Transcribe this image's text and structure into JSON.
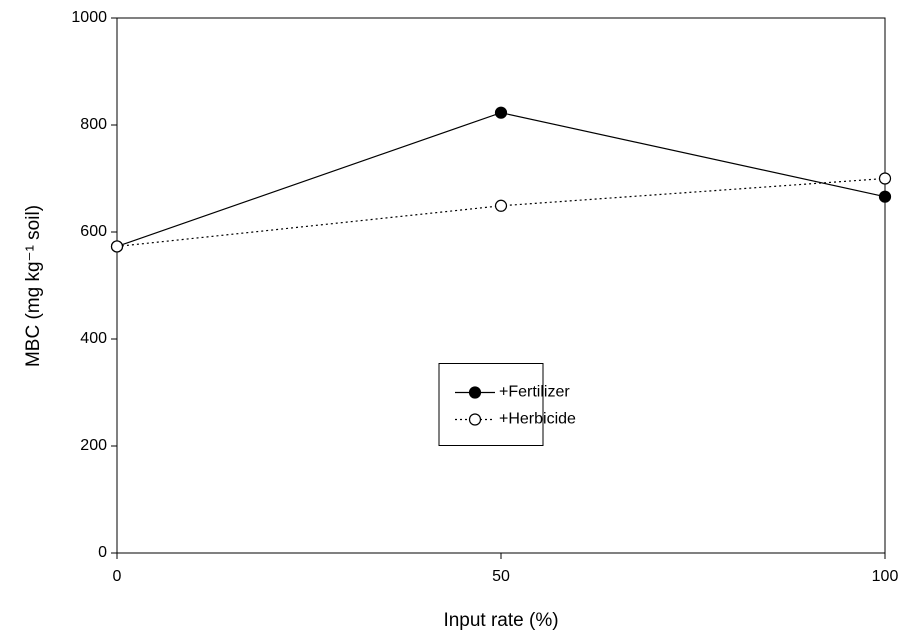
{
  "chart_data": {
    "type": "line",
    "xlabel": "Input rate (%)",
    "ylabel": "MBC (mg kg⁻¹ soil)",
    "x": [
      0,
      50,
      100
    ],
    "series": [
      {
        "name": "+Fertilizer",
        "color": "#000000",
        "line_style": "solid",
        "marker": "filled",
        "values": [
          573,
          823,
          666
        ]
      },
      {
        "name": "+Herbicide",
        "color": "#000000",
        "line_style": "dotted",
        "marker": "open",
        "values": [
          573,
          649,
          700
        ]
      }
    ],
    "xlim": [
      0,
      100
    ],
    "xticks": [
      0,
      50,
      100
    ],
    "ylim": [
      0,
      1000
    ],
    "yticks": [
      0,
      200,
      400,
      600,
      800,
      1000
    ],
    "grid": false,
    "legend": "center"
  }
}
